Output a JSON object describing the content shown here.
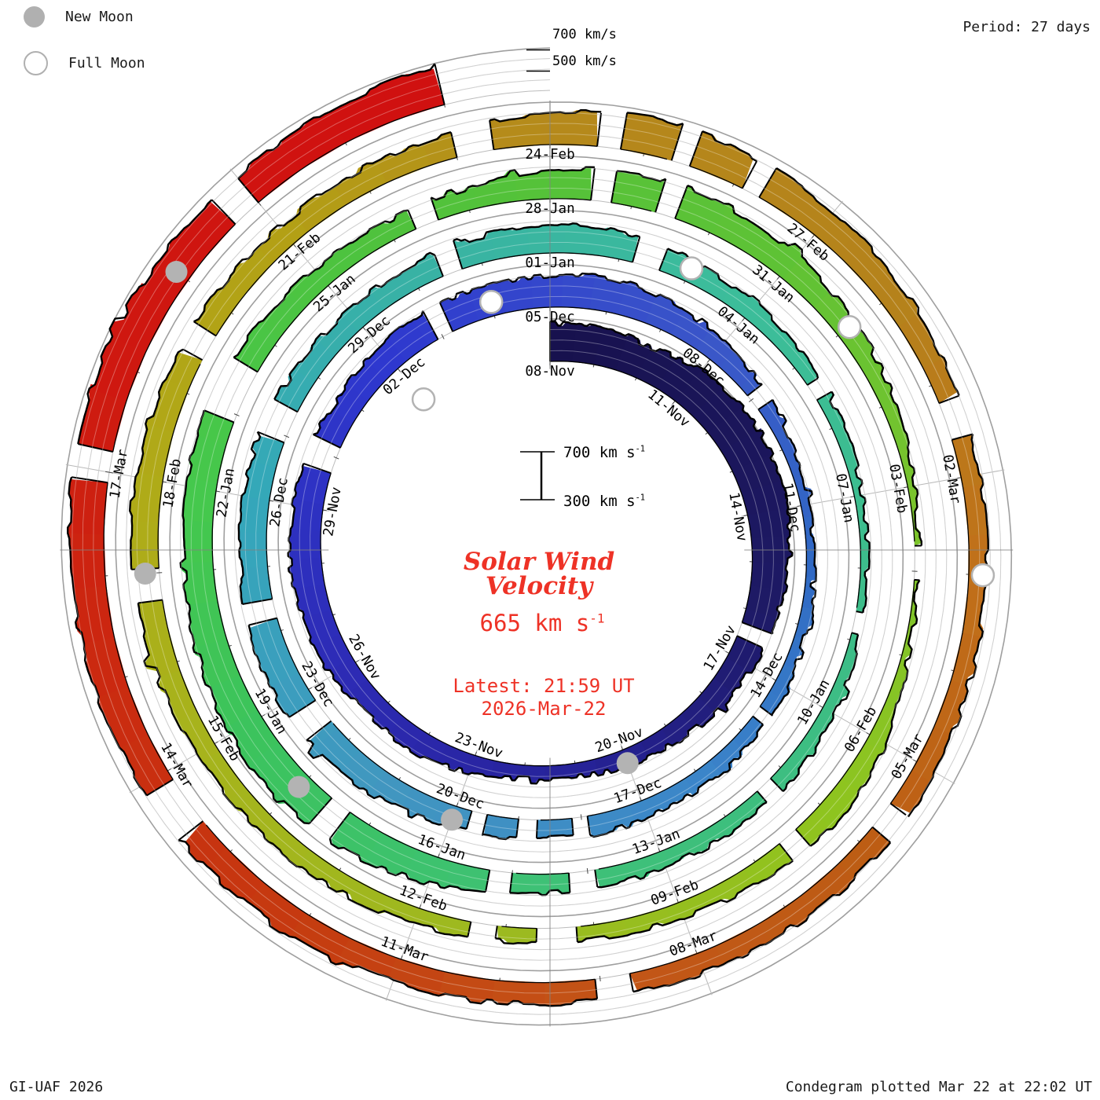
{
  "legend": {
    "new_label": "New Moon",
    "full_label": "Full Moon"
  },
  "header": {
    "period_label": "Period: 27 days"
  },
  "footer": {
    "left": "GI-UAF 2026",
    "right": "Condegram plotted Mar 22 at 22:02 UT"
  },
  "end_labels": {
    "v700": "700 km/s",
    "v500": "500 km/s"
  },
  "center": {
    "title_line1": "Solar Wind",
    "title_line2": "Velocity",
    "value": "665 km s",
    "value_sup": "-1",
    "latest_line1": "Latest: 21:59 UT",
    "latest_line2": "2026-Mar-22",
    "scale_top": "700 km s",
    "scale_bottom": "300 km s",
    "scale_sup": "-1",
    "accent_color": "#ee3226"
  },
  "chart_data": {
    "type": "area",
    "subtype": "condegram-spiral",
    "title": "Solar Wind Velocity",
    "period_days": 27,
    "start_date": "2025-11-08",
    "end_date": "2026-03-22",
    "latest_value_kms": 665,
    "latest_time": "21:59 UT 2026-Mar-22",
    "velocity_axis_kms": [
      300,
      400,
      500,
      600,
      700
    ],
    "label_every_days": 3,
    "date_labels": [
      {
        "label": "08-Nov",
        "day": 0
      },
      {
        "label": "11-Nov",
        "day": 3
      },
      {
        "label": "14-Nov",
        "day": 6
      },
      {
        "label": "17-Nov",
        "day": 9
      },
      {
        "label": "20-Nov",
        "day": 12
      },
      {
        "label": "23-Nov",
        "day": 15
      },
      {
        "label": "26-Nov",
        "day": 18
      },
      {
        "label": "29-Nov",
        "day": 21
      },
      {
        "label": "02-Dec",
        "day": 24
      },
      {
        "label": "05-Dec",
        "day": 27
      },
      {
        "label": "08-Dec",
        "day": 30
      },
      {
        "label": "11-Dec",
        "day": 33
      },
      {
        "label": "14-Dec",
        "day": 36
      },
      {
        "label": "17-Dec",
        "day": 39
      },
      {
        "label": "20-Dec",
        "day": 42
      },
      {
        "label": "23-Dec",
        "day": 45
      },
      {
        "label": "26-Dec",
        "day": 48
      },
      {
        "label": "29-Dec",
        "day": 51
      },
      {
        "label": "01-Jan",
        "day": 54
      },
      {
        "label": "04-Jan",
        "day": 57
      },
      {
        "label": "07-Jan",
        "day": 60
      },
      {
        "label": "10-Jan",
        "day": 63
      },
      {
        "label": "13-Jan",
        "day": 66
      },
      {
        "label": "16-Jan",
        "day": 69
      },
      {
        "label": "19-Jan",
        "day": 72
      },
      {
        "label": "22-Jan",
        "day": 75
      },
      {
        "label": "25-Jan",
        "day": 78
      },
      {
        "label": "28-Jan",
        "day": 81
      },
      {
        "label": "31-Jan",
        "day": 84
      },
      {
        "label": "03-Feb",
        "day": 87
      },
      {
        "label": "06-Feb",
        "day": 90
      },
      {
        "label": "09-Feb",
        "day": 93
      },
      {
        "label": "12-Feb",
        "day": 96
      },
      {
        "label": "15-Feb",
        "day": 99
      },
      {
        "label": "18-Feb",
        "day": 102
      },
      {
        "label": "21-Feb",
        "day": 105
      },
      {
        "label": "24-Feb",
        "day": 108
      },
      {
        "label": "27-Feb",
        "day": 111
      },
      {
        "label": "02-Mar",
        "day": 114
      },
      {
        "label": "05-Mar",
        "day": 117
      },
      {
        "label": "08-Mar",
        "day": 120
      },
      {
        "label": "11-Mar",
        "day": 123
      },
      {
        "label": "14-Mar",
        "day": 126
      },
      {
        "label": "17-Mar",
        "day": 129
      }
    ],
    "daily_velocity_kms": [
      660,
      640,
      615,
      680,
      715,
      700,
      690,
      645,
      595,
      560,
      515,
      480,
      450,
      430,
      425,
      475,
      515,
      500,
      560,
      580,
      600,
      585,
      570,
      545,
      560,
      595,
      580,
      600,
      620,
      575,
      515,
      455,
      415,
      380,
      370,
      390,
      425,
      445,
      455,
      470,
      480,
      470,
      490,
      545,
      580,
      600,
      575,
      550,
      560,
      540,
      520,
      505,
      520,
      545,
      560,
      540,
      505,
      470,
      440,
      410,
      380,
      360,
      375,
      425,
      455,
      445,
      455,
      465,
      485,
      555,
      620,
      650,
      640,
      605,
      580,
      600,
      580,
      545,
      505,
      485,
      505,
      560,
      620,
      600,
      560,
      505,
      440,
      360,
      330,
      355,
      480,
      520,
      485,
      445,
      425,
      435,
      455,
      470,
      480,
      490,
      520,
      550,
      560,
      540,
      520,
      505,
      520,
      545,
      600,
      650,
      620,
      580,
      540,
      505,
      480,
      460,
      470,
      490,
      505,
      495,
      485,
      495,
      505,
      520,
      545,
      565,
      580,
      600,
      620,
      640,
      650,
      630,
      605,
      640,
      665
    ],
    "color_stops": [
      [
        0,
        "#17114d"
      ],
      [
        8,
        "#1e1a66"
      ],
      [
        13,
        "#262298"
      ],
      [
        18,
        "#2d2bb5"
      ],
      [
        24,
        "#2e38cf"
      ],
      [
        30,
        "#3a57c8"
      ],
      [
        34,
        "#3069c4"
      ],
      [
        38,
        "#3b85c9"
      ],
      [
        43,
        "#4196c0"
      ],
      [
        48,
        "#34a7ba"
      ],
      [
        52,
        "#38b2a4"
      ],
      [
        57,
        "#3cbd9a"
      ],
      [
        63,
        "#3dbd84"
      ],
      [
        68,
        "#3ec174"
      ],
      [
        72,
        "#3cc35c"
      ],
      [
        75,
        "#45c84c"
      ],
      [
        79,
        "#4fc23c"
      ],
      [
        84,
        "#5fc235"
      ],
      [
        88,
        "#7fc42a"
      ],
      [
        91,
        "#8fc41e"
      ],
      [
        95,
        "#9cba20"
      ],
      [
        99,
        "#a6b41c"
      ],
      [
        102,
        "#b0aa18"
      ],
      [
        105,
        "#b3a015"
      ],
      [
        108,
        "#b5891b"
      ],
      [
        112,
        "#b5821b"
      ],
      [
        115,
        "#c0701a"
      ],
      [
        118,
        "#bd5d14"
      ],
      [
        121,
        "#c35517"
      ],
      [
        124,
        "#c53b10"
      ],
      [
        127,
        "#cb2a10"
      ],
      [
        130,
        "#cf1810"
      ],
      [
        134,
        "#d01010"
      ]
    ],
    "data_gaps_day_width": [
      [
        8.3,
        0.3
      ],
      [
        21.7,
        0.5
      ],
      [
        24.9,
        0.3
      ],
      [
        30.9,
        0.3
      ],
      [
        36.5,
        0.2
      ],
      [
        39.9,
        0.25
      ],
      [
        40.7,
        0.3
      ],
      [
        41.5,
        0.25
      ],
      [
        44.4,
        0.4
      ],
      [
        46.2,
        0.3
      ],
      [
        48.9,
        0.5
      ],
      [
        52.4,
        0.3
      ],
      [
        55.2,
        0.4
      ],
      [
        58.3,
        0.25
      ],
      [
        61.6,
        0.3
      ],
      [
        64.2,
        0.25
      ],
      [
        66.9,
        0.35
      ],
      [
        68.0,
        0.3
      ],
      [
        70.3,
        0.3
      ],
      [
        75.9,
        0.7
      ],
      [
        79.3,
        0.3
      ],
      [
        81.5,
        0.25
      ],
      [
        82.3,
        0.25
      ],
      [
        87.7,
        0.4
      ],
      [
        91.4,
        0.25
      ],
      [
        94.2,
        0.45
      ],
      [
        95.1,
        0.3
      ],
      [
        100.7,
        0.35
      ],
      [
        103.4,
        0.3
      ],
      [
        107.0,
        0.4
      ],
      [
        108.5,
        0.25
      ],
      [
        109.3,
        0.2
      ],
      [
        110.1,
        0.2
      ],
      [
        113.2,
        0.4
      ],
      [
        117.5,
        0.3
      ],
      [
        120.7,
        0.35
      ],
      [
        125.4,
        0.5
      ],
      [
        128.9,
        0.3
      ],
      [
        131.7,
        0.3
      ]
    ],
    "moons": {
      "new": [
        {
          "date": "20-Nov",
          "day": 12
        },
        {
          "date": "20-Dec",
          "day": 42
        },
        {
          "date": "18-Jan",
          "day": 71
        },
        {
          "date": "17-Feb",
          "day": 101
        },
        {
          "date": "19-Mar",
          "day": 131
        }
      ],
      "full": [
        {
          "date": "05-Nov",
          "day": -3
        },
        {
          "date": "04-Dec",
          "day": 26
        },
        {
          "date": "03-Jan",
          "day": 56
        },
        {
          "date": "01-Feb",
          "day": 85
        },
        {
          "date": "03-Mar",
          "day": 115
        }
      ]
    },
    "legend_note": "grid: 5 velocity arcs per 27-day turn (300-700 km/s), radial lines every 3 days"
  }
}
